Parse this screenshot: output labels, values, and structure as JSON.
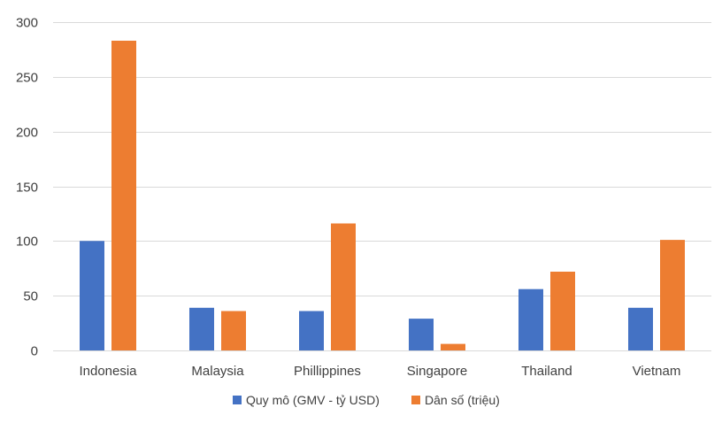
{
  "chart_data": {
    "type": "bar",
    "title": "",
    "xlabel": "",
    "ylabel": "",
    "categories": [
      "Indonesia",
      "Malaysia",
      "Phillippines",
      "Singapore",
      "Thailand",
      "Vietnam"
    ],
    "series": [
      {
        "name": "Quy mô (GMV - tỷ USD)",
        "color": "#4472C4",
        "values": [
          100,
          39,
          36,
          29,
          56,
          39
        ]
      },
      {
        "name": "Dân số (triệu)",
        "color": "#ED7D31",
        "values": [
          283,
          36,
          116,
          6,
          72,
          101
        ]
      }
    ],
    "ylim": [
      0,
      300
    ],
    "yticks": [
      0,
      50,
      100,
      150,
      200,
      250,
      300
    ],
    "grid": true,
    "legend_position": "bottom"
  }
}
